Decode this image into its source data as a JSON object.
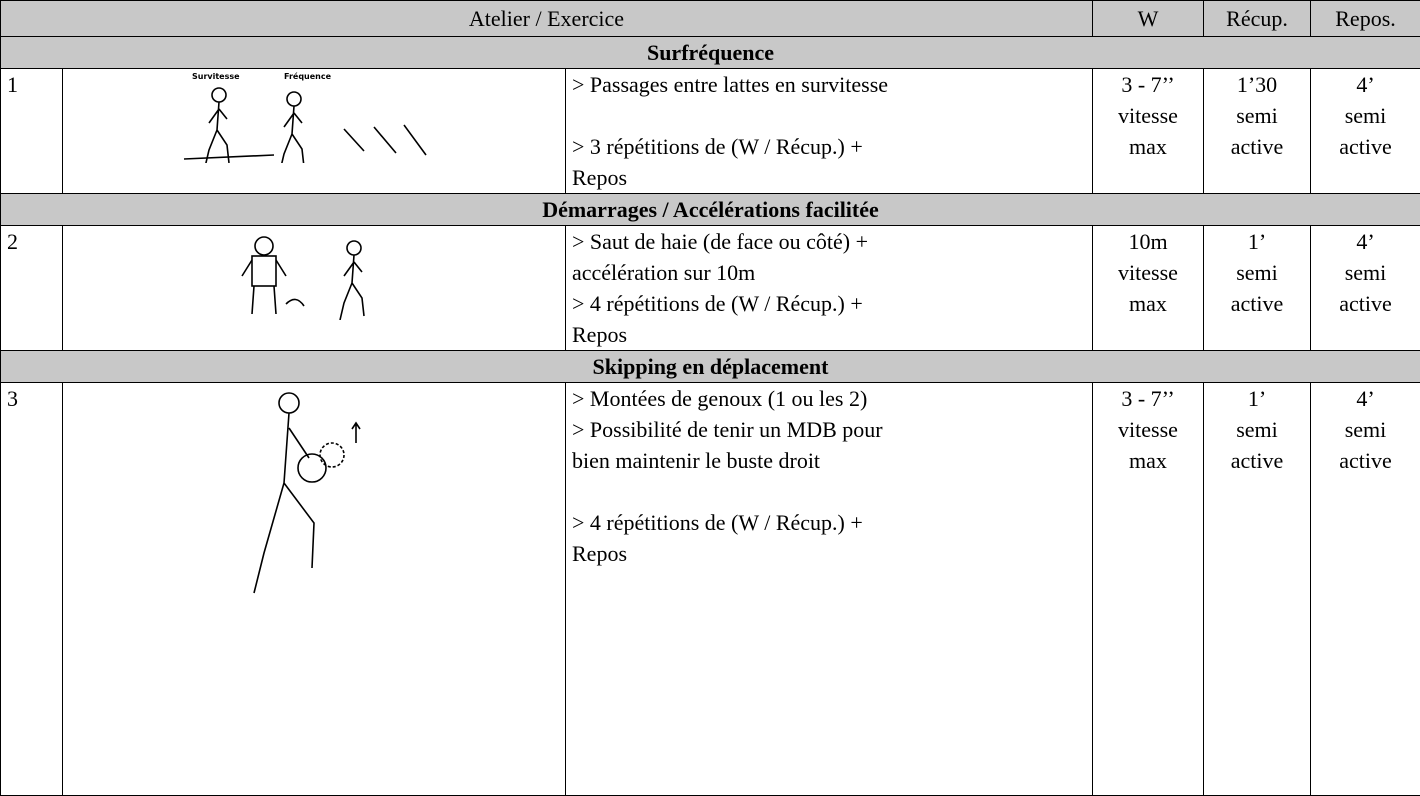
{
  "header": [
    "Atelier / Exercice",
    "W",
    "Récup.",
    "Repos."
  ],
  "sections": [
    {
      "title": "Surfréquence",
      "number": "1",
      "image_labels": [
        "Survitesse",
        "Fréquence"
      ],
      "description": [
        "> Passages entre lattes en survitesse",
        "> 3 répétitions de (W / Récup.) +",
        "Repos"
      ],
      "w": [
        "3 - 7’’",
        "vitesse",
        "max"
      ],
      "recup": [
        "1’30",
        "semi",
        "active"
      ],
      "repos": [
        "4’",
        "semi",
        "active"
      ]
    },
    {
      "title": "Démarrages / Accélérations facilitée",
      "number": "2",
      "description": [
        "> Saut de haie (de face ou côté) +",
        "accélération sur 10m",
        "> 4 répétitions de (W / Récup.) +",
        "Repos"
      ],
      "w": [
        "10m",
        "vitesse",
        "max"
      ],
      "recup": [
        "1’",
        "semi",
        "active"
      ],
      "repos": [
        "4’",
        "semi",
        "active"
      ]
    },
    {
      "title": "Skipping en déplacement",
      "number": "3",
      "description": [
        "> Montées de genoux (1 ou les 2)",
        "> Possibilité de tenir un MDB pour",
        "bien maintenir le buste droit",
        "> 4 répétitions de (W / Récup.) +",
        "Repos"
      ],
      "w": [
        "3 - 7’’",
        "vitesse",
        "max"
      ],
      "recup": [
        "1’",
        "semi",
        "active"
      ],
      "repos": [
        "4’",
        "semi",
        "active"
      ]
    }
  ]
}
